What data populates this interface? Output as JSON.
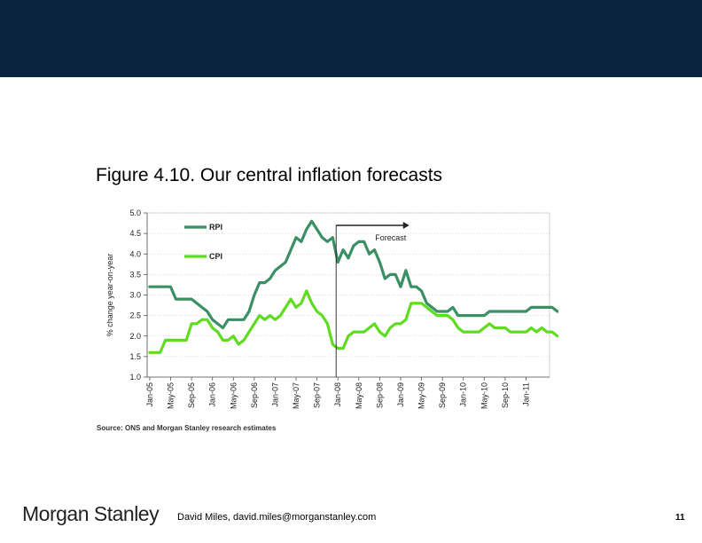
{
  "slide": {
    "figure_title": "Figure 4.10. Our central inflation forecasts",
    "source": "Source: ONS and Morgan Stanley research estimates",
    "brand": "Morgan Stanley",
    "author": "David Miles, david.miles@morganstanley.com",
    "page_number": "11",
    "banner_color": "#0c2340"
  },
  "chart_data": {
    "type": "line",
    "title": "",
    "ylabel": "% change year-on-year",
    "xlabel": "",
    "ylim": [
      1.0,
      5.0
    ],
    "yticks": [
      "5.0",
      "4.5",
      "4.0",
      "3.5",
      "3.0",
      "2.5",
      "2.0",
      "1.5",
      "1.0"
    ],
    "xticks": [
      "Jan-05",
      "May-05",
      "Sep-05",
      "Jan-06",
      "May-06",
      "Sep-06",
      "Jan-07",
      "May-07",
      "Sep-07",
      "Jan-08",
      "May-08",
      "Sep-08",
      "Jan-09",
      "May-09",
      "Sep-09",
      "Jan-10",
      "May-10",
      "Sep-10",
      "Jan-11"
    ],
    "x_start": "Jan-05",
    "x_end": "May-11",
    "grid": true,
    "legend_position": "top-left",
    "annotation": {
      "label": "Forecast",
      "start": "Jan-08",
      "end": "Mar-09"
    },
    "series": [
      {
        "name": "RPI",
        "color": "#3a8f64",
        "values": [
          3.2,
          3.2,
          3.2,
          3.2,
          3.2,
          2.9,
          2.9,
          2.9,
          2.9,
          2.8,
          2.7,
          2.6,
          2.4,
          2.3,
          2.2,
          2.4,
          2.4,
          2.4,
          2.4,
          2.6,
          3.0,
          3.3,
          3.3,
          3.4,
          3.6,
          3.7,
          3.8,
          4.1,
          4.4,
          4.3,
          4.6,
          4.8,
          4.6,
          4.4,
          4.3,
          4.4,
          3.8,
          4.1,
          3.9,
          4.2,
          4.3,
          4.3,
          4.0,
          4.1,
          3.8,
          3.4,
          3.5,
          3.5,
          3.2,
          3.6,
          3.2,
          3.2,
          3.1,
          2.8,
          2.7,
          2.6,
          2.6,
          2.6,
          2.7,
          2.5,
          2.5,
          2.5,
          2.5,
          2.5,
          2.5,
          2.6,
          2.6,
          2.6,
          2.6,
          2.6,
          2.6,
          2.6,
          2.6,
          2.7,
          2.7,
          2.7,
          2.7,
          2.7,
          2.6,
          2.6,
          2.6,
          2.6,
          2.6,
          2.6,
          2.6,
          2.6,
          2.7,
          2.6,
          2.6
        ]
      },
      {
        "name": "CPI",
        "color": "#5edc1f",
        "values": [
          1.6,
          1.6,
          1.6,
          1.9,
          1.9,
          1.9,
          1.9,
          1.9,
          2.3,
          2.3,
          2.4,
          2.4,
          2.2,
          2.1,
          1.9,
          1.9,
          2.0,
          1.8,
          1.9,
          2.1,
          2.3,
          2.5,
          2.4,
          2.5,
          2.4,
          2.5,
          2.7,
          2.9,
          2.7,
          2.8,
          3.1,
          2.8,
          2.6,
          2.5,
          2.3,
          1.8,
          1.7,
          1.7,
          2.0,
          2.1,
          2.1,
          2.1,
          2.2,
          2.3,
          2.1,
          2.0,
          2.2,
          2.3,
          2.3,
          2.4,
          2.8,
          2.8,
          2.8,
          2.7,
          2.6,
          2.5,
          2.5,
          2.5,
          2.4,
          2.2,
          2.1,
          2.1,
          2.1,
          2.1,
          2.2,
          2.3,
          2.2,
          2.2,
          2.2,
          2.1,
          2.1,
          2.1,
          2.1,
          2.2,
          2.1,
          2.2,
          2.1,
          2.1,
          2.0,
          2.0,
          2.0,
          1.9,
          2.0,
          2.0,
          2.0,
          2.0,
          2.1,
          2.0,
          2.0
        ]
      }
    ]
  }
}
